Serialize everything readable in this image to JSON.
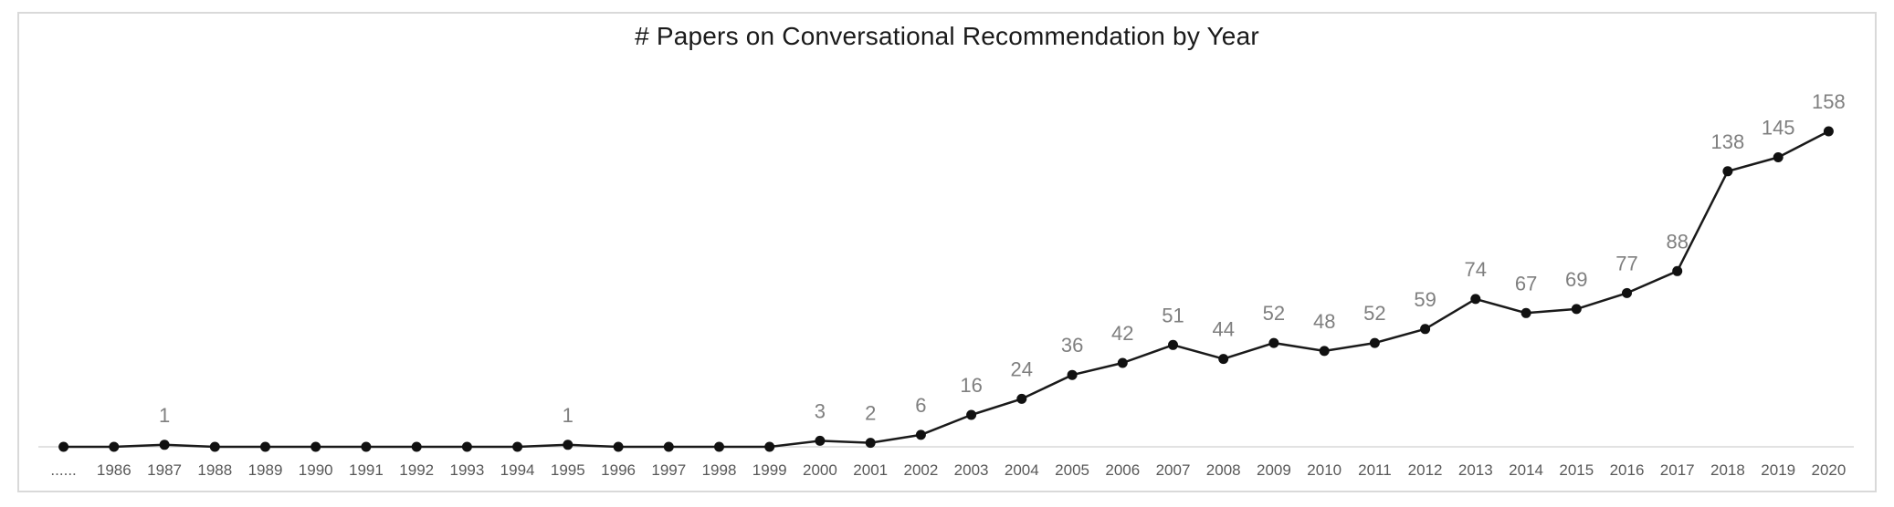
{
  "chart_data": {
    "type": "line",
    "title": "# Papers on Conversational Recommendation by Year",
    "categories": [
      "......",
      "1986",
      "1987",
      "1988",
      "1989",
      "1990",
      "1991",
      "1992",
      "1993",
      "1994",
      "1995",
      "1996",
      "1997",
      "1998",
      "1999",
      "2000",
      "2001",
      "2002",
      "2003",
      "2004",
      "2005",
      "2006",
      "2007",
      "2008",
      "2009",
      "2010",
      "2011",
      "2012",
      "2013",
      "2014",
      "2015",
      "2016",
      "2017",
      "2018",
      "2019",
      "2020"
    ],
    "values": [
      0,
      0,
      1,
      0,
      0,
      0,
      0,
      0,
      0,
      0,
      1,
      0,
      0,
      0,
      0,
      3,
      2,
      6,
      16,
      24,
      36,
      42,
      51,
      44,
      52,
      48,
      52,
      59,
      74,
      67,
      69,
      77,
      88,
      138,
      145,
      158
    ],
    "data_labels_shown_for_nonzero_only": true,
    "ylim": [
      0,
      165
    ],
    "xlabel": "",
    "ylabel": "",
    "legend": "none",
    "grid": false,
    "colors": {
      "line": "#1a1a1a",
      "marker": "#111111",
      "value_label": "#7f7f7f",
      "tick_label": "#595959",
      "baseline": "#d9d9d9",
      "frame_border": "#d9d9d9",
      "title": "#1a1a1a",
      "background": "#ffffff"
    }
  }
}
